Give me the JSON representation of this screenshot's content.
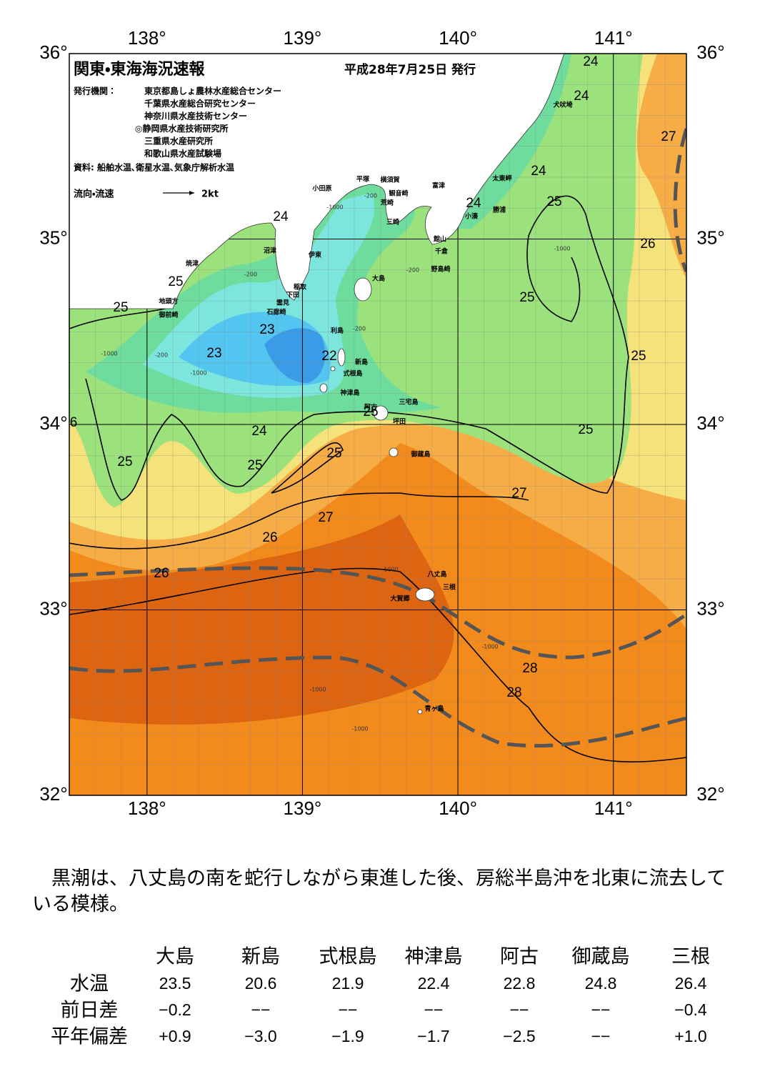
{
  "map": {
    "title": "関東・東海海況速報",
    "date": "平成28年7月25日 発行",
    "issuer_label": "発行機関：",
    "issuers": [
      "東京都島しょ農林水産総合センター",
      "千葉県水産総合研究センター",
      "神奈川県水産技術センター",
      "◎静岡県水産技術研究所",
      "三重県水産研究所",
      "和歌山県水産試験場"
    ],
    "source": "資料: 船舶水温､衛星水温､気象庁解析水温",
    "legend_label": "流向・流速",
    "legend_scale": "2kt",
    "xlim": [
      137.5,
      141.47
    ],
    "ylim": [
      32,
      36
    ],
    "xticks": [
      {
        "value": 138,
        "label": "138°"
      },
      {
        "value": 139,
        "label": "139°"
      },
      {
        "value": 140,
        "label": "140°"
      },
      {
        "value": 141,
        "label": "141°"
      }
    ],
    "yticks": [
      {
        "value": 36,
        "label": "36°"
      },
      {
        "value": 35,
        "label": "35°"
      },
      {
        "value": 34,
        "label": "34°"
      },
      {
        "value": 33,
        "label": "33°"
      },
      {
        "value": 32,
        "label": "32°"
      }
    ],
    "place_names": [
      "犬吠埼",
      "太東岬",
      "勝浦",
      "小湊",
      "富津",
      "館山",
      "千倉",
      "野島崎",
      "横須賀",
      "観音崎",
      "荒崎",
      "三崎",
      "平塚",
      "小田原",
      "沼津",
      "伊東",
      "焼津",
      "稲取",
      "下田",
      "雲見",
      "石廊崎",
      "地頭方",
      "御前崎",
      "大島",
      "利島",
      "新島",
      "式根島",
      "神津島",
      "三宅島",
      "阿古",
      "坪田",
      "御蔵島",
      "八丈島",
      "三根",
      "大賀郷",
      "青ヶ島"
    ],
    "contour_labels": [
      "24",
      "24",
      "27",
      "24",
      "24",
      "25",
      "24",
      "26",
      "25",
      "25",
      "25",
      "23",
      "23",
      "22",
      "25",
      "25",
      "6",
      "25",
      "24",
      "25",
      "25",
      "25",
      "27",
      "27",
      "26",
      "26",
      "28",
      "28"
    ],
    "depth_labels": [
      "-200",
      "-1000",
      "-200",
      "-1000",
      "-200",
      "-1000",
      "-200",
      "-1000",
      "-200",
      "-1000",
      "-1000",
      "-1000",
      "-1000"
    ]
  },
  "note": "黒潮は、八丈島の南を蛇行しながら東進した後、房総半島沖を北東に流去している模様。",
  "table": {
    "columns": [
      "大島",
      "新島",
      "式根島",
      "神津島",
      "阿古",
      "御蔵島",
      "三根"
    ],
    "rows": [
      {
        "label": "水温",
        "values": [
          23.5,
          20.6,
          21.9,
          22.4,
          22.8,
          24.8,
          26.4
        ]
      },
      {
        "label": "前日差",
        "values": [
          "−0.2",
          "−−",
          "−−",
          "−−",
          "−−",
          "−−",
          "−0.4"
        ]
      },
      {
        "label": "平年偏差",
        "values": [
          "+0.9",
          "−3.0",
          "−1.9",
          "−1.7",
          "−2.5",
          "−−",
          "+1.0"
        ]
      }
    ]
  }
}
